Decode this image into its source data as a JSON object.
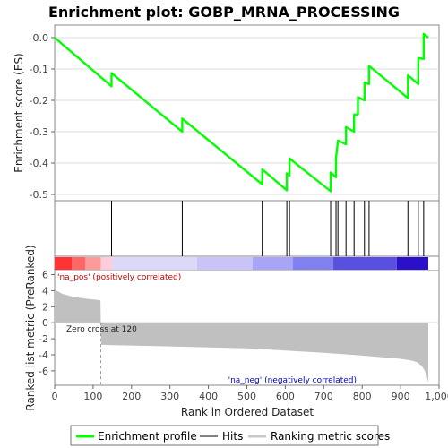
{
  "chart_data": {
    "type": "line",
    "title": "Enrichment plot: GOBP_MRNA_PROCESSING",
    "es_panel": {
      "ylabel": "Enrichment score (ES)",
      "ylim": [
        -0.52,
        0.04
      ],
      "yticks": [
        "0.0",
        "-0.1",
        "-0.2",
        "-0.3",
        "-0.4",
        "-0.5"
      ],
      "ytick_values": [
        0.0,
        -0.1,
        -0.2,
        -0.3,
        -0.4,
        -0.5
      ],
      "series": [
        {
          "name": "Enrichment profile",
          "color": "#00ff00",
          "x": [
            0,
            148,
            148,
            332,
            332,
            540,
            540,
            604,
            604,
            611,
            611,
            718,
            718,
            732,
            732,
            737,
            737,
            758,
            758,
            779,
            779,
            789,
            789,
            806,
            806,
            818,
            818,
            919,
            919,
            946,
            946,
            960,
            960,
            972
          ],
          "y": [
            0.0,
            -0.155,
            -0.113,
            -0.3,
            -0.258,
            -0.468,
            -0.42,
            -0.487,
            -0.433,
            -0.44,
            -0.385,
            -0.49,
            -0.43,
            -0.445,
            -0.385,
            -0.328,
            -0.328,
            -0.34,
            -0.285,
            -0.3,
            -0.245,
            -0.245,
            -0.19,
            -0.2,
            -0.143,
            -0.148,
            -0.09,
            -0.193,
            -0.12,
            -0.148,
            -0.065,
            -0.068,
            0.012,
            0.0
          ]
        }
      ]
    },
    "hits": {
      "name": "Hits",
      "positions": [
        148,
        332,
        540,
        604,
        611,
        718,
        732,
        737,
        758,
        779,
        789,
        806,
        818,
        919,
        946,
        960
      ]
    },
    "ranking_panel": {
      "ylabel": "Ranked list metric (PreRanked)",
      "ylim": [
        -7.8,
        6.5
      ],
      "yticks": [
        "6",
        "4",
        "2",
        "0",
        "-2",
        "-4",
        "-6"
      ],
      "ytick_values": [
        6,
        4,
        2,
        0,
        -2,
        -4,
        -6
      ],
      "xlabel": "Rank in Dataset",
      "xlabel_full": "Rank in Ordered Dataset",
      "xlim": [
        0,
        1000
      ],
      "xticks": [
        "0",
        "100",
        "200",
        "300",
        "400",
        "500",
        "600",
        "700",
        "800",
        "900",
        "1,000"
      ],
      "xtick_values": [
        0,
        100,
        200,
        300,
        400,
        500,
        600,
        700,
        800,
        900,
        1000
      ],
      "n_genes": 972,
      "zero_cross": 120,
      "profile": {
        "x": [
          0,
          5,
          20,
          50,
          80,
          100,
          119,
          121,
          150,
          300,
          500,
          700,
          800,
          900,
          920,
          935,
          945,
          955,
          962,
          968,
          972
        ],
        "y": [
          4.4,
          4.0,
          3.6,
          3.2,
          3.0,
          2.9,
          2.8,
          -2.75,
          -2.8,
          -2.95,
          -3.2,
          -3.75,
          -4.1,
          -4.5,
          -4.65,
          -4.8,
          -5.0,
          -5.4,
          -5.9,
          -6.6,
          -7.5
        ]
      },
      "annotations": {
        "pos_label": "'na_pos' (positively correlated)",
        "neg_label": "'na_neg' (negatively correlated)",
        "zero_cross_label": "Zero cross at 120"
      }
    },
    "color_bar": {
      "stops": [
        {
          "x": 0,
          "color": "#ff3333"
        },
        {
          "x": 45,
          "color": "#ff6666"
        },
        {
          "x": 80,
          "color": "#ff9a9a"
        },
        {
          "x": 120,
          "color": "#ffccdd"
        },
        {
          "x": 150,
          "color": "#dcd8f8"
        },
        {
          "x": 370,
          "color": "#c8c4f8"
        },
        {
          "x": 515,
          "color": "#a8a4f6"
        },
        {
          "x": 620,
          "color": "#8080f0"
        },
        {
          "x": 725,
          "color": "#5a50e0"
        },
        {
          "x": 890,
          "color": "#2a10c8"
        },
        {
          "x": 972,
          "color": "#2a10c8"
        }
      ]
    },
    "legend": {
      "placement": "bottom",
      "entries": [
        {
          "name": "Enrichment profile",
          "color": "#00ff00"
        },
        {
          "name": "Hits",
          "color": "#000000"
        },
        {
          "name": "Ranking metric scores",
          "color": "#c8c8c8"
        }
      ]
    }
  }
}
